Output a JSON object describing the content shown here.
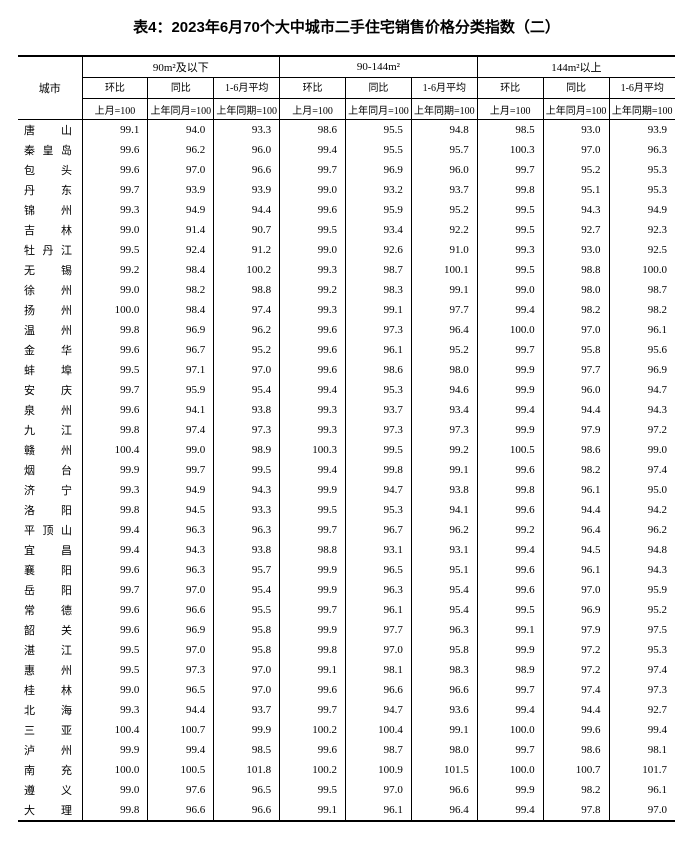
{
  "title": "表4：2023年6月70个大中城市二手住宅销售价格分类指数（二）",
  "header": {
    "city": "城市",
    "groups": [
      "90m²及以下",
      "90-144m²",
      "144m²以上"
    ],
    "sub1": [
      "环比",
      "同比",
      "1-6月平均"
    ],
    "sub2": [
      "上月=100",
      "上年同月=100",
      "上年同期=100"
    ]
  },
  "rows": [
    {
      "city": "唐　山",
      "v": [
        99.1,
        94.0,
        93.3,
        98.6,
        95.5,
        94.8,
        98.5,
        93.0,
        93.9
      ]
    },
    {
      "city": "秦皇岛",
      "v": [
        99.6,
        96.2,
        96.0,
        99.4,
        95.5,
        95.7,
        100.3,
        97.0,
        96.3
      ]
    },
    {
      "city": "包　头",
      "v": [
        99.6,
        97.0,
        96.6,
        99.7,
        96.9,
        96.0,
        99.7,
        95.2,
        95.3
      ]
    },
    {
      "city": "丹　东",
      "v": [
        99.7,
        93.9,
        93.9,
        99.0,
        93.2,
        93.7,
        99.8,
        95.1,
        95.3
      ]
    },
    {
      "city": "锦　州",
      "v": [
        99.3,
        94.9,
        94.4,
        99.6,
        95.9,
        95.2,
        99.5,
        94.3,
        94.9
      ]
    },
    {
      "city": "吉　林",
      "v": [
        99.0,
        91.4,
        90.7,
        99.5,
        93.4,
        92.2,
        99.5,
        92.7,
        92.3
      ]
    },
    {
      "city": "牡丹江",
      "v": [
        99.5,
        92.4,
        91.2,
        99.0,
        92.6,
        91.0,
        99.3,
        93.0,
        92.5
      ]
    },
    {
      "city": "无　锡",
      "v": [
        99.2,
        98.4,
        100.2,
        99.3,
        98.7,
        100.1,
        99.5,
        98.8,
        100.0
      ]
    },
    {
      "city": "徐　州",
      "v": [
        99.0,
        98.2,
        98.8,
        99.2,
        98.3,
        99.1,
        99.0,
        98.0,
        98.7
      ]
    },
    {
      "city": "扬　州",
      "v": [
        100.0,
        98.4,
        97.4,
        99.3,
        99.1,
        97.7,
        99.4,
        98.2,
        98.2
      ]
    },
    {
      "city": "温　州",
      "v": [
        99.8,
        96.9,
        96.2,
        99.6,
        97.3,
        96.4,
        100.0,
        97.0,
        96.1
      ]
    },
    {
      "city": "金　华",
      "v": [
        99.6,
        96.7,
        95.2,
        99.6,
        96.1,
        95.2,
        99.7,
        95.8,
        95.6
      ]
    },
    {
      "city": "蚌　埠",
      "v": [
        99.5,
        97.1,
        97.0,
        99.6,
        98.6,
        98.0,
        99.9,
        97.7,
        96.9
      ]
    },
    {
      "city": "安　庆",
      "v": [
        99.7,
        95.9,
        95.4,
        99.4,
        95.3,
        94.6,
        99.9,
        96.0,
        94.7
      ]
    },
    {
      "city": "泉　州",
      "v": [
        99.6,
        94.1,
        93.8,
        99.3,
        93.7,
        93.4,
        99.4,
        94.4,
        94.3
      ]
    },
    {
      "city": "九　江",
      "v": [
        99.8,
        97.4,
        97.3,
        99.3,
        97.3,
        97.3,
        99.9,
        97.9,
        97.2
      ]
    },
    {
      "city": "赣　州",
      "v": [
        100.4,
        99.0,
        98.9,
        100.3,
        99.5,
        99.2,
        100.5,
        98.6,
        99.0
      ]
    },
    {
      "city": "烟　台",
      "v": [
        99.9,
        99.7,
        99.5,
        99.4,
        99.8,
        99.1,
        99.6,
        98.2,
        97.4
      ]
    },
    {
      "city": "济　宁",
      "v": [
        99.3,
        94.9,
        94.3,
        99.9,
        94.7,
        93.8,
        99.8,
        96.1,
        95.0
      ]
    },
    {
      "city": "洛　阳",
      "v": [
        99.8,
        94.5,
        93.3,
        99.5,
        95.3,
        94.1,
        99.6,
        94.4,
        94.2
      ]
    },
    {
      "city": "平顶山",
      "v": [
        99.4,
        96.3,
        96.3,
        99.7,
        96.7,
        96.2,
        99.2,
        96.4,
        96.2
      ]
    },
    {
      "city": "宜　昌",
      "v": [
        99.4,
        94.3,
        93.8,
        98.8,
        93.1,
        93.1,
        99.4,
        94.5,
        94.8
      ]
    },
    {
      "city": "襄　阳",
      "v": [
        99.6,
        96.3,
        95.7,
        99.9,
        96.5,
        95.1,
        99.6,
        96.1,
        94.3
      ]
    },
    {
      "city": "岳　阳",
      "v": [
        99.7,
        97.0,
        95.4,
        99.9,
        96.3,
        95.4,
        99.6,
        97.0,
        95.9
      ]
    },
    {
      "city": "常　德",
      "v": [
        99.6,
        96.6,
        95.5,
        99.7,
        96.1,
        95.4,
        99.5,
        96.9,
        95.2
      ]
    },
    {
      "city": "韶　关",
      "v": [
        99.6,
        96.9,
        95.8,
        99.9,
        97.7,
        96.3,
        99.1,
        97.9,
        97.5
      ]
    },
    {
      "city": "湛　江",
      "v": [
        99.5,
        97.0,
        95.8,
        99.8,
        97.0,
        95.8,
        99.9,
        97.2,
        95.3
      ]
    },
    {
      "city": "惠　州",
      "v": [
        99.5,
        97.3,
        97.0,
        99.1,
        98.1,
        98.3,
        98.9,
        97.2,
        97.4
      ]
    },
    {
      "city": "桂　林",
      "v": [
        99.0,
        96.5,
        97.0,
        99.6,
        96.6,
        96.6,
        99.7,
        97.4,
        97.3
      ]
    },
    {
      "city": "北　海",
      "v": [
        99.3,
        94.4,
        93.7,
        99.7,
        94.7,
        93.6,
        99.4,
        94.4,
        92.7
      ]
    },
    {
      "city": "三　亚",
      "v": [
        100.4,
        100.7,
        99.9,
        100.2,
        100.4,
        99.1,
        100.0,
        99.6,
        99.4
      ]
    },
    {
      "city": "泸　州",
      "v": [
        99.9,
        99.4,
        98.5,
        99.6,
        98.7,
        98.0,
        99.7,
        98.6,
        98.1
      ]
    },
    {
      "city": "南　充",
      "v": [
        100.0,
        100.5,
        101.8,
        100.2,
        100.9,
        101.5,
        100.0,
        100.7,
        101.7
      ]
    },
    {
      "city": "遵　义",
      "v": [
        99.0,
        97.6,
        96.5,
        99.5,
        97.0,
        96.6,
        99.9,
        98.2,
        96.1
      ]
    },
    {
      "city": "大　理",
      "v": [
        99.8,
        96.6,
        96.6,
        99.1,
        96.1,
        96.4,
        99.4,
        97.8,
        97.0
      ]
    }
  ]
}
